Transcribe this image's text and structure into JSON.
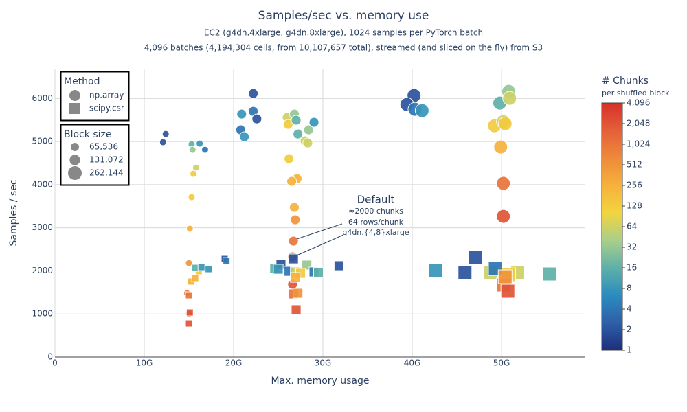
{
  "chart_data": {
    "type": "scatter",
    "title": "Samples/sec vs. memory use",
    "subtitle_lines": [
      "EC2 (g4dn.4xlarge, g4dn.8xlarge), 1024 samples per PyTorch batch",
      "4,096 batches (4,194,304 cells, from 10,107,657 total), streamed (and sliced on the fly) from S3"
    ],
    "x_label": "Max. memory usage",
    "y_label": "Samples / sec",
    "xlim": [
      0,
      59.3
    ],
    "ylim": [
      0,
      6690
    ],
    "xticks": [
      0,
      {
        "value": 10,
        "label": "10G"
      },
      {
        "value": 20,
        "label": "20G"
      },
      {
        "value": 30,
        "label": "30G"
      },
      {
        "value": 40,
        "label": "40G"
      },
      {
        "value": 50,
        "label": "50G"
      }
    ],
    "yticks": [
      0,
      1000,
      2000,
      3000,
      4000,
      5000,
      6000
    ],
    "grid": true,
    "legend_title": "Method",
    "size_legend": {
      "title": "Block size",
      "values": [
        {
          "value": 65536,
          "label": "65,536"
        },
        {
          "value": 131072,
          "label": "131,072"
        },
        {
          "value": 262144,
          "label": "262,144"
        }
      ]
    },
    "colorbar": {
      "title": "# Chunks",
      "subtitle": "per shuffled block",
      "log_scale": true,
      "range": [
        1,
        4096
      ],
      "colorscale": [
        "#1d2f7c",
        "#2f5fa8",
        "#2b8cbe",
        "#5fb0a8",
        "#a9cf8a",
        "#f2d43f",
        "#f6b13d",
        "#ee8a3a",
        "#e4603a",
        "#d6302a"
      ],
      "ticks": [
        1,
        2,
        4,
        8,
        16,
        32,
        64,
        128,
        256,
        512,
        {
          "value": 1024,
          "label": "1,024"
        },
        {
          "value": 2048,
          "label": "2,048"
        },
        {
          "value": 4096,
          "label": "4,096"
        }
      ]
    },
    "annotation": {
      "title": "Default",
      "lines": [
        "≈2000 chunks",
        "64 rows/chunk",
        "g4dn.{4,8}xlarge"
      ]
    },
    "series": [
      {
        "name": "np.array",
        "marker": "circle",
        "x": [
          12.1,
          12.4,
          15.3,
          16.2,
          16.8,
          15.4,
          15.8,
          15.5,
          15.3,
          15.1,
          15.0,
          14.8,
          15.0,
          22.2,
          20.9,
          22.2,
          22.6,
          20.8,
          21.2,
          26.0,
          26.8,
          26.1,
          27.0,
          27.2,
          28.4,
          29.0,
          28.0,
          28.3,
          26.2,
          27.1,
          26.5,
          26.8,
          26.9,
          26.7,
          26.6,
          26.6,
          40.2,
          39.4,
          40.3,
          41.1,
          50.8,
          49.8,
          50.9,
          49.2,
          50.2,
          50.4,
          49.9,
          50.2,
          50.2
        ],
        "y": [
          4985,
          5175,
          4936,
          4952,
          4809,
          4809,
          4395,
          4252,
          3710,
          2978,
          2181,
          1481,
          1003,
          6115,
          5637,
          5700,
          5525,
          5271,
          5111,
          5557,
          5637,
          5398,
          5494,
          5175,
          5271,
          5446,
          5016,
          4968,
          4602,
          4140,
          4076,
          3471,
          3185,
          2691,
          2325,
          1688,
          6067,
          5860,
          5748,
          5717,
          6162,
          5892,
          6003,
          5366,
          5462,
          5414,
          4873,
          4029,
          3264
        ],
        "chunks": [
          2,
          2,
          16,
          8,
          4,
          32,
          64,
          128,
          128,
          256,
          512,
          1024,
          2048,
          2,
          8,
          4,
          2,
          4,
          8,
          64,
          32,
          128,
          16,
          16,
          32,
          8,
          64,
          64,
          128,
          256,
          256,
          256,
          512,
          1024,
          2048,
          2048,
          2,
          2,
          4,
          8,
          32,
          16,
          64,
          128,
          64,
          128,
          256,
          1024,
          2048
        ],
        "block": [
          65536,
          65536,
          65536,
          65536,
          65536,
          65536,
          65536,
          65536,
          65536,
          65536,
          65536,
          65536,
          65536,
          131072,
          131072,
          131072,
          131072,
          131072,
          131072,
          131072,
          131072,
          131072,
          131072,
          131072,
          131072,
          131072,
          131072,
          131072,
          131072,
          131072,
          131072,
          131072,
          131072,
          131072,
          131072,
          131072,
          262144,
          262144,
          262144,
          262144,
          262144,
          262144,
          262144,
          262144,
          262144,
          262144,
          262144,
          262144,
          262144
        ]
      },
      {
        "name": "scipy.csr",
        "marker": "square",
        "x": [
          15.0,
          15.1,
          15.0,
          15.2,
          15.7,
          16.1,
          15.7,
          16.4,
          17.2,
          19.0,
          19.2,
          24.6,
          25.3,
          25.0,
          26.7,
          26.2,
          28.2,
          26.9,
          27.5,
          29.0,
          29.5,
          31.8,
          26.7,
          27.2,
          27.0,
          26.9,
          42.6,
          45.9,
          47.1,
          48.8,
          49.3,
          51.8,
          50.8,
          50.2,
          50.7,
          50.4,
          55.4
        ],
        "y": [
          780,
          1035,
          1433,
          1752,
          1831,
          1990,
          2070,
          2086,
          2038,
          2277,
          2229,
          2054,
          2150,
          2038,
          2277,
          1990,
          2134,
          1975,
          1943,
          1975,
          1959,
          2118,
          1465,
          1481,
          1099,
          1847,
          2006,
          1959,
          2309,
          1959,
          2054,
          1959,
          1911,
          1672,
          1529,
          1863,
          1927
        ],
        "chunks": [
          2048,
          2048,
          1024,
          256,
          256,
          128,
          16,
          8,
          8,
          2,
          4,
          16,
          2,
          8,
          2,
          4,
          32,
          64,
          128,
          4,
          16,
          2,
          1024,
          512,
          2048,
          256,
          8,
          2,
          2,
          64,
          4,
          64,
          128,
          1024,
          2048,
          512,
          16
        ],
        "block": [
          65536,
          65536,
          65536,
          65536,
          65536,
          65536,
          65536,
          65536,
          65536,
          65536,
          65536,
          131072,
          131072,
          131072,
          131072,
          131072,
          131072,
          131072,
          131072,
          131072,
          131072,
          131072,
          131072,
          131072,
          131072,
          131072,
          262144,
          262144,
          262144,
          262144,
          262144,
          262144,
          262144,
          262144,
          262144,
          262144,
          262144
        ]
      }
    ]
  }
}
